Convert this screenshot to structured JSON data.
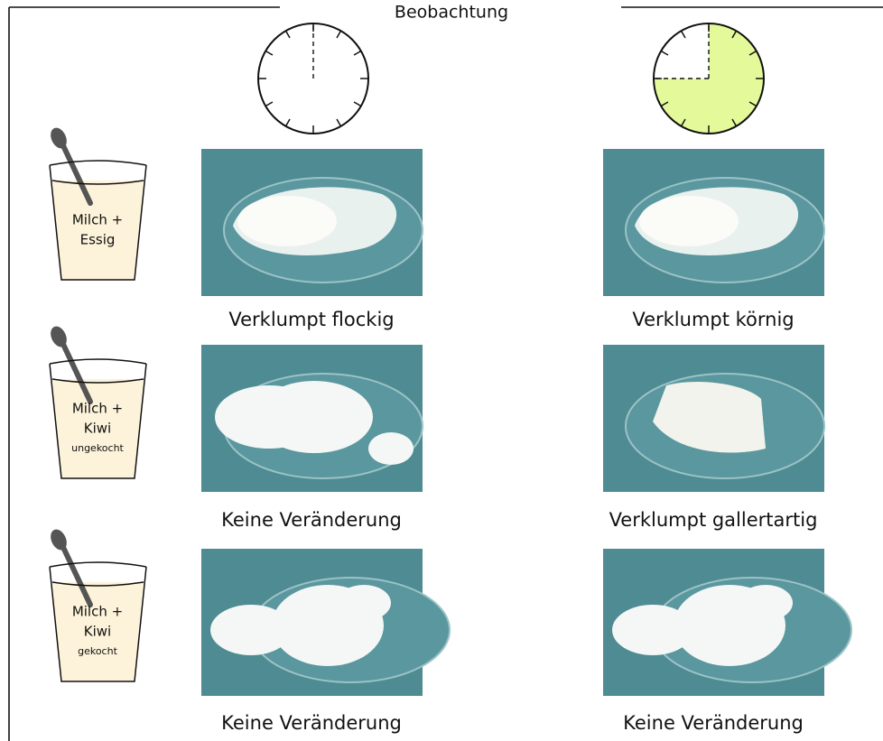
{
  "title": "Beobachtung",
  "rows": [
    {
      "glass": [
        "Milch +",
        "Essig"
      ],
      "observations": [
        "Verklumpt flockig",
        "Verklumpt körnig"
      ]
    },
    {
      "glass": [
        "Milch +",
        "Kiwi",
        "ungekocht"
      ],
      "observations": [
        "Keine Veränderung",
        "Verklumpt gallertartig"
      ]
    },
    {
      "glass": [
        "Milch +",
        "Kiwi",
        "gekocht"
      ],
      "observations": [
        "Keine Veränderung",
        "Keine Veränderung"
      ]
    }
  ]
}
